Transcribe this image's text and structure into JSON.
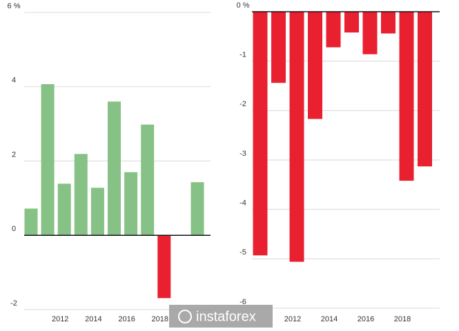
{
  "chart_data": [
    {
      "type": "bar",
      "categories": [
        "2010",
        "2011",
        "2012",
        "2013",
        "2014",
        "2015",
        "2016",
        "2017",
        "2018",
        "2019",
        "2020"
      ],
      "x_labels": [
        null,
        null,
        "2012",
        null,
        "2014",
        null,
        "2016",
        null,
        "2018",
        null,
        null
      ],
      "values": [
        0.72,
        4.07,
        1.39,
        2.19,
        1.28,
        3.6,
        1.7,
        2.98,
        -1.69,
        null,
        1.43
      ],
      "color": "#86c285",
      "negative_color": "#e8202f",
      "ylim": [
        -2,
        6
      ],
      "yticks": [
        -2,
        0,
        2,
        4,
        {
          "value": 6,
          "label": "6 %"
        }
      ],
      "grid": true
    },
    {
      "type": "bar",
      "categories": [
        "2010",
        "2011",
        "2012",
        "2013",
        "2014",
        "2015",
        "2016",
        "2017",
        "2018",
        "2019"
      ],
      "x_labels": [
        null,
        null,
        "2012",
        null,
        "2014",
        null,
        "2016",
        null,
        "2018",
        null
      ],
      "values": [
        -4.93,
        -1.44,
        -5.06,
        -2.17,
        -0.72,
        -0.42,
        -0.86,
        -0.44,
        -3.42,
        -3.13
      ],
      "color": "#86c285",
      "negative_color": "#e8202f",
      "ylim": [
        -6,
        0
      ],
      "yticks": [
        -6,
        -5,
        -4,
        -3,
        -2,
        -1,
        {
          "value": 0,
          "label": "0 %"
        }
      ],
      "grid": true
    }
  ],
  "watermark": "instaforex"
}
